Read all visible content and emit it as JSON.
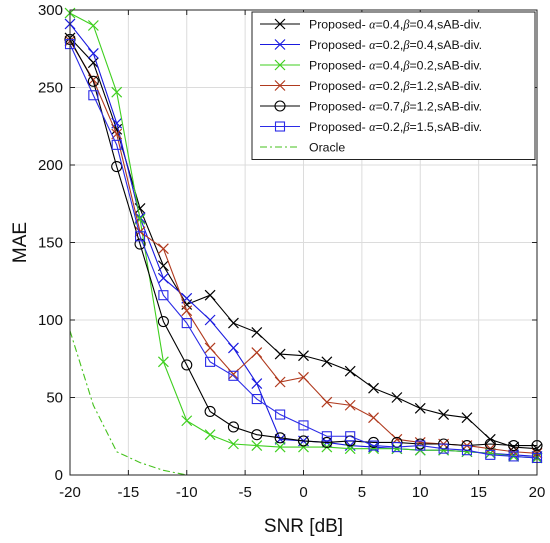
{
  "chart_data": {
    "type": "line",
    "xlabel": "SNR [dB]",
    "ylabel": "MAE",
    "xlim": [
      -20,
      20
    ],
    "ylim": [
      0,
      300
    ],
    "xticks": [
      -20,
      -15,
      -10,
      -5,
      0,
      5,
      10,
      15,
      20
    ],
    "yticks": [
      0,
      50,
      100,
      150,
      200,
      250,
      300
    ],
    "grid": true,
    "legend_position": "top-right",
    "x": [
      -20,
      -18,
      -16,
      -14,
      -12,
      -10,
      -8,
      -6,
      -4,
      -2,
      0,
      2,
      4,
      6,
      8,
      10,
      12,
      14,
      16,
      18,
      20
    ],
    "series": [
      {
        "name": "Proposed- α=0.4,β=0.4,sAB-div.",
        "legend": {
          "prefix": "Proposed- ",
          "a_val": "0.4",
          "b_val": "0.4",
          "suffix": ",sAB-div."
        },
        "color": "#000000",
        "marker": "x",
        "dash": "",
        "values": [
          282,
          266,
          223,
          172,
          135,
          110,
          116,
          98,
          92,
          78,
          77,
          73,
          67,
          56,
          50,
          43,
          39,
          37,
          23,
          18,
          17
        ]
      },
      {
        "name": "Proposed- α=0.2,β=0.4,sAB-div.",
        "legend": {
          "prefix": "Proposed- ",
          "a_val": "0.2",
          "b_val": "0.4",
          "suffix": ",sAB-div."
        },
        "color": "#1a1adf",
        "marker": "x",
        "dash": "",
        "values": [
          291,
          272,
          227,
          166,
          127,
          114,
          100,
          82,
          59,
          23,
          22,
          21,
          19,
          18,
          17,
          16,
          16,
          15,
          14,
          13,
          12
        ]
      },
      {
        "name": "Proposed- α=0.4,β=0.2,sAB-div.",
        "legend": {
          "prefix": "Proposed- ",
          "a_val": "0.4",
          "b_val": "0.2",
          "suffix": ",sAB-div."
        },
        "color": "#3fcf1f",
        "marker": "x",
        "dash": "",
        "values": [
          298,
          290,
          247,
          165,
          73,
          35,
          26,
          20,
          19,
          18,
          18,
          18,
          17,
          17,
          17,
          16,
          16,
          15,
          14,
          12,
          11
        ]
      },
      {
        "name": "Proposed- α=0.2,β=1.2,sAB-div.",
        "legend": {
          "prefix": "Proposed- ",
          "a_val": "0.2",
          "b_val": "1.2",
          "suffix": ",sAB-div."
        },
        "color": "#b03a1e",
        "marker": "x",
        "dash": "",
        "values": [
          280,
          255,
          220,
          157,
          146,
          106,
          82,
          65,
          79,
          60,
          63,
          47,
          45,
          37,
          23,
          21,
          20,
          19,
          17,
          15,
          14
        ]
      },
      {
        "name": "Proposed- α=0.7,β=1.2,sAB-div.",
        "legend": {
          "prefix": "Proposed- ",
          "a_val": "0.7",
          "b_val": "1.2",
          "suffix": ",sAB-div."
        },
        "color": "#000000",
        "marker": "o",
        "dash": "",
        "values": [
          281,
          254,
          199,
          149,
          99,
          71,
          41,
          31,
          26,
          24,
          22,
          21,
          22,
          21,
          21,
          20,
          20,
          19,
          20,
          19,
          19
        ]
      },
      {
        "name": "Proposed- α=0.2,β=1.5,sAB-div.",
        "legend": {
          "prefix": "Proposed- ",
          "a_val": "0.2",
          "b_val": "1.5",
          "suffix": ",sAB-div."
        },
        "color": "#2b2be6",
        "marker": "s",
        "dash": "",
        "values": [
          278,
          245,
          213,
          154,
          116,
          98,
          73,
          64,
          49,
          39,
          32,
          25,
          25,
          19,
          18,
          19,
          17,
          16,
          13,
          12,
          11
        ]
      },
      {
        "name": "Oracle",
        "legend": {
          "prefix": "Oracle",
          "a_val": "",
          "b_val": "",
          "suffix": ""
        },
        "color": "#46c21e",
        "marker": "none",
        "dash": "7 3 2 3",
        "values": [
          93,
          45,
          15,
          8,
          3,
          0,
          0,
          0,
          0,
          0,
          0,
          0,
          0,
          0,
          0,
          0,
          0,
          0,
          0,
          0,
          0
        ]
      }
    ]
  }
}
